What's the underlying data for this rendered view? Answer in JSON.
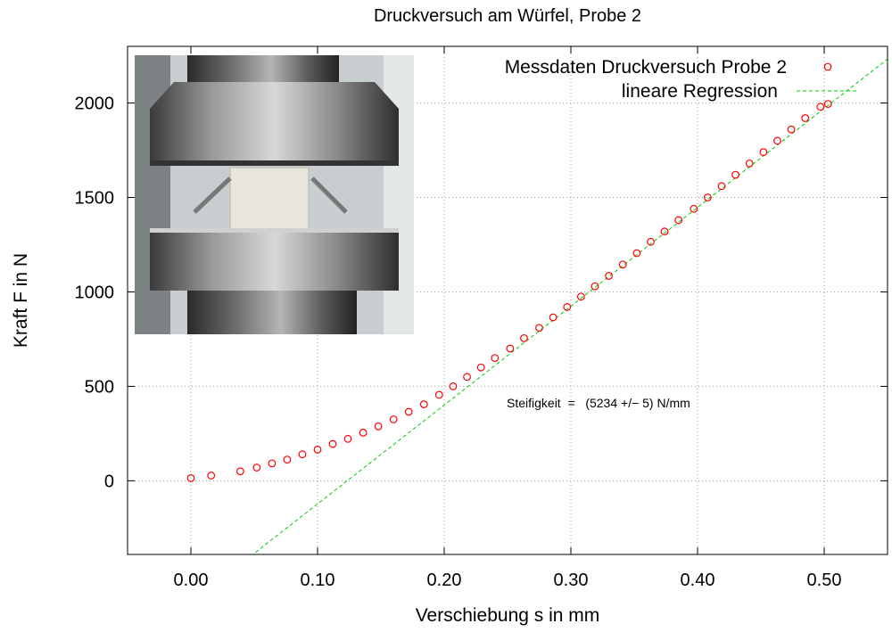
{
  "chart_data": {
    "type": "scatter",
    "title": "Druckversuch am Würfel, Probe 2",
    "xlabel": "Verschiebung s in mm",
    "ylabel": "Kraft F in N",
    "xlim": [
      -0.05,
      0.55
    ],
    "ylim": [
      -390,
      2300
    ],
    "xticks": [
      0.0,
      0.1,
      0.2,
      0.3,
      0.4,
      0.5
    ],
    "xtick_labels": [
      "0.00",
      "0.10",
      "0.20",
      "0.30",
      "0.40",
      "0.50"
    ],
    "yticks": [
      0,
      500,
      1000,
      1500,
      2000
    ],
    "ytick_labels": [
      "0",
      "500",
      "1000",
      "1500",
      "2000"
    ],
    "grid": true,
    "legend_position": "top-right",
    "series": [
      {
        "name": "Messdaten Druckversuch Probe 2",
        "marker": "open-circle",
        "color": "#ff0000",
        "x": [
          0.0,
          0.016,
          0.039,
          0.052,
          0.064,
          0.076,
          0.088,
          0.1,
          0.112,
          0.124,
          0.136,
          0.148,
          0.16,
          0.172,
          0.184,
          0.196,
          0.207,
          0.218,
          0.229,
          0.24,
          0.252,
          0.263,
          0.275,
          0.286,
          0.297,
          0.308,
          0.319,
          0.33,
          0.341,
          0.352,
          0.363,
          0.374,
          0.385,
          0.397,
          0.408,
          0.419,
          0.43,
          0.441,
          0.452,
          0.463,
          0.474,
          0.485,
          0.497,
          0.503
        ],
        "y": [
          14,
          28,
          50,
          70,
          92,
          112,
          140,
          165,
          195,
          222,
          255,
          288,
          325,
          365,
          405,
          455,
          500,
          550,
          600,
          650,
          700,
          755,
          810,
          865,
          920,
          975,
          1030,
          1085,
          1145,
          1205,
          1265,
          1320,
          1380,
          1440,
          1500,
          1560,
          1620,
          1680,
          1740,
          1800,
          1860,
          1920,
          1980,
          1995
        ]
      },
      {
        "name": "lineare Regression",
        "line_style": "dashed",
        "color": "#00cc00",
        "slope": 5234,
        "intercept": -646
      }
    ],
    "annotation": "Steifigkeit  =   (5234 +/− 5) N/mm"
  },
  "photo": {
    "description_icon": "compression-test-photo"
  }
}
